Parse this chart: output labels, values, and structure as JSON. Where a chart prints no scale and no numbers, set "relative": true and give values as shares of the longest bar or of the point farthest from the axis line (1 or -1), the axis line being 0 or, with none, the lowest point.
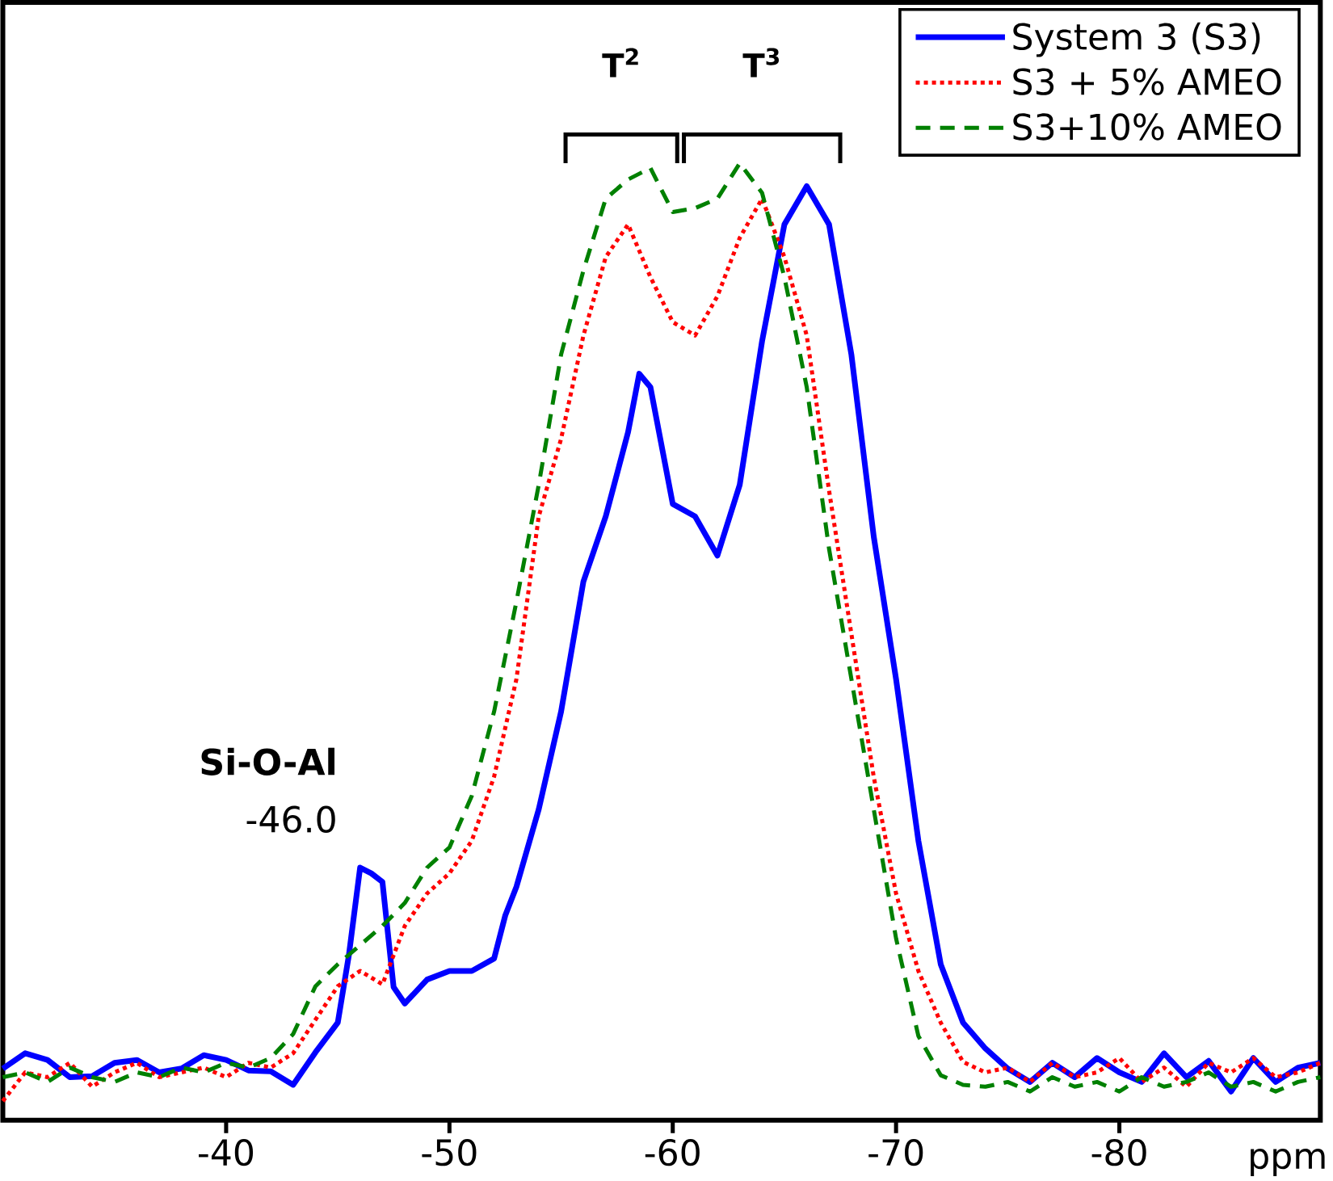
{
  "chart_data": {
    "type": "line",
    "relative": true,
    "xlabel": "ppm",
    "xlim": [
      -30,
      -89
    ],
    "xticks": [
      -40,
      -50,
      -60,
      -70,
      -80
    ],
    "legend": "top right",
    "grid": false,
    "annotations": [
      "Si-O-Al",
      "-46.0",
      "T$^{2}$",
      "T$^{3}$"
    ],
    "series": [
      {
        "name": "System 3 (S3)",
        "color": "#0000ff",
        "line_style": "solid",
        "x": [
          -30,
          -31,
          -32,
          -33,
          -34,
          -35,
          -36,
          -37,
          -38,
          -39,
          -40,
          -41,
          -42,
          -43,
          -44,
          -45,
          -45.5,
          -46,
          -46.5,
          -47,
          -47.5,
          -48,
          -49,
          -50,
          -51,
          -52,
          -52.5,
          -53,
          -54,
          -55,
          -56,
          -57,
          -58,
          -58.5,
          -59,
          -60,
          -61,
          -62,
          -63,
          -64,
          -65,
          -66,
          -67,
          -68,
          -69,
          -70,
          -71,
          -72,
          -73,
          -74,
          -75,
          -76,
          -77,
          -78,
          -79,
          -80,
          -81,
          -82,
          -83,
          -84,
          -85,
          -86,
          -87,
          -88,
          -89
        ],
        "values": [
          0.054,
          0.07,
          0.063,
          0.045,
          0.046,
          0.06,
          0.063,
          0.05,
          0.054,
          0.068,
          0.063,
          0.052,
          0.051,
          0.037,
          0.071,
          0.102,
          0.173,
          0.264,
          0.258,
          0.249,
          0.139,
          0.122,
          0.147,
          0.156,
          0.156,
          0.169,
          0.214,
          0.244,
          0.325,
          0.427,
          0.563,
          0.631,
          0.719,
          0.78,
          0.766,
          0.644,
          0.631,
          0.59,
          0.664,
          0.814,
          0.936,
          0.976,
          0.936,
          0.8,
          0.61,
          0.461,
          0.292,
          0.163,
          0.102,
          0.075,
          0.054,
          0.04,
          0.06,
          0.045,
          0.065,
          0.05,
          0.04,
          0.07,
          0.045,
          0.062,
          0.03,
          0.065,
          0.04,
          0.055,
          0.06
        ]
      },
      {
        "name": "S3 + 5% AMEO",
        "color": "#ff0000",
        "line_style": "dotted",
        "x": [
          -30,
          -31,
          -32,
          -33,
          -34,
          -35,
          -36,
          -37,
          -38,
          -39,
          -40,
          -41,
          -42,
          -43,
          -44,
          -45,
          -46,
          -47,
          -48,
          -49,
          -50,
          -51,
          -52,
          -53,
          -54,
          -55,
          -56,
          -57,
          -58,
          -59,
          -60,
          -61,
          -62,
          -63,
          -64,
          -65,
          -66,
          -67,
          -68,
          -69,
          -70,
          -71,
          -72,
          -73,
          -74,
          -75,
          -76,
          -77,
          -78,
          -79,
          -80,
          -81,
          -82,
          -83,
          -84,
          -85,
          -86,
          -87,
          -88,
          -89
        ],
        "values": [
          0.02,
          0.05,
          0.045,
          0.06,
          0.035,
          0.05,
          0.06,
          0.045,
          0.05,
          0.055,
          0.045,
          0.06,
          0.055,
          0.07,
          0.105,
          0.14,
          0.156,
          0.142,
          0.203,
          0.237,
          0.258,
          0.292,
          0.359,
          0.461,
          0.631,
          0.712,
          0.82,
          0.902,
          0.936,
          0.881,
          0.834,
          0.82,
          0.861,
          0.922,
          0.963,
          0.902,
          0.82,
          0.658,
          0.508,
          0.359,
          0.237,
          0.156,
          0.102,
          0.061,
          0.05,
          0.055,
          0.04,
          0.06,
          0.045,
          0.05,
          0.065,
          0.04,
          0.055,
          0.035,
          0.06,
          0.05,
          0.065,
          0.045,
          0.05,
          0.06
        ]
      },
      {
        "name": "S3+10% AMEO",
        "color": "#008000",
        "line_style": "dashed",
        "x": [
          -30,
          -31,
          -32,
          -33,
          -34,
          -35,
          -36,
          -37,
          -38,
          -39,
          -40,
          -41,
          -42,
          -43,
          -44,
          -45,
          -46,
          -47,
          -48,
          -49,
          -50,
          -51,
          -52,
          -53,
          -54,
          -55,
          -56,
          -57,
          -58,
          -59,
          -60,
          -61,
          -62,
          -63,
          -64,
          -65,
          -66,
          -67,
          -68,
          -69,
          -70,
          -71,
          -72,
          -73,
          -74,
          -75,
          -76,
          -77,
          -78,
          -79,
          -80,
          -81,
          -82,
          -83,
          -84,
          -85,
          -86,
          -87,
          -88,
          -89
        ],
        "values": [
          0.045,
          0.05,
          0.04,
          0.055,
          0.045,
          0.04,
          0.05,
          0.045,
          0.055,
          0.05,
          0.06,
          0.055,
          0.065,
          0.09,
          0.14,
          0.163,
          0.183,
          0.203,
          0.227,
          0.264,
          0.285,
          0.339,
          0.427,
          0.542,
          0.664,
          0.8,
          0.888,
          0.963,
          0.983,
          0.995,
          0.949,
          0.953,
          0.963,
          1.0,
          0.969,
          0.881,
          0.766,
          0.597,
          0.461,
          0.325,
          0.19,
          0.088,
          0.047,
          0.037,
          0.035,
          0.04,
          0.03,
          0.045,
          0.035,
          0.04,
          0.03,
          0.045,
          0.035,
          0.04,
          0.05,
          0.035,
          0.04,
          0.03,
          0.04,
          0.045
        ]
      }
    ]
  }
}
